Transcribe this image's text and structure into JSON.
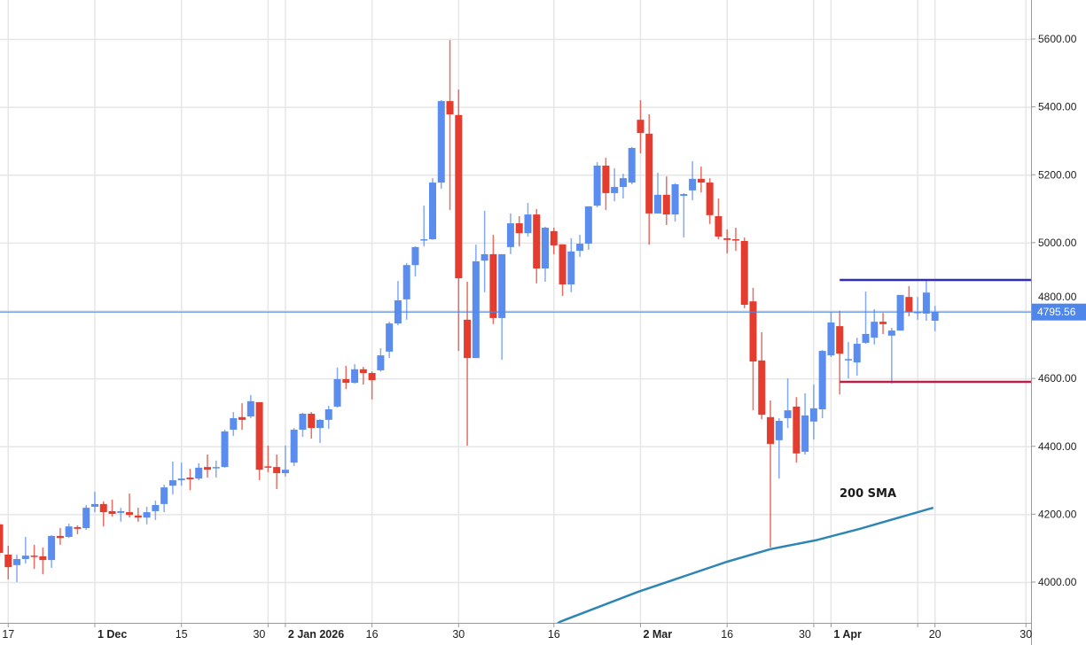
{
  "chart_data": {
    "type": "candlestick",
    "title": "",
    "colors": {
      "up": "#5b8def",
      "down": "#e53c30",
      "grid": "#e6e6e6",
      "price_line": "#4f86ea",
      "resistance": "#2f2cbf",
      "support": "#b5214b",
      "sma": "#2f86b5"
    },
    "ylim": [
      3880,
      5680
    ],
    "y_ticks": [
      "5600.00",
      "5400.00",
      "5200.00",
      "5000.00",
      "4800.00",
      "4600.00",
      "4400.00",
      "4200.00",
      "4000.00"
    ],
    "y_tick_values": [
      5600,
      5400,
      5200,
      5000,
      4800,
      4600,
      4400,
      4200,
      4000
    ],
    "x_ticks": [
      {
        "label": "17",
        "index": 1,
        "major": false
      },
      {
        "label": "1 Dec",
        "index": 11,
        "major": true
      },
      {
        "label": "15",
        "index": 21,
        "major": false
      },
      {
        "label": "30",
        "index": 31,
        "major": false
      },
      {
        "label": "2 Jan 2026",
        "index": 33,
        "major": true
      },
      {
        "label": "16",
        "index": 43,
        "major": false
      },
      {
        "label": "30",
        "index": 53,
        "major": false
      },
      {
        "label": "16",
        "index": 64,
        "major": false
      },
      {
        "label": "2 Mar",
        "index": 74,
        "major": true
      },
      {
        "label": "16",
        "index": 84,
        "major": false
      },
      {
        "label": "30",
        "index": 94,
        "major": false
      },
      {
        "label": "1 Apr",
        "index": 96,
        "major": true
      },
      {
        "label": "",
        "index": 106,
        "major": false
      },
      {
        "label": "20",
        "index": 108,
        "major": false
      },
      {
        "label": "30",
        "index": 118.5,
        "major": false
      }
    ],
    "candles_ohlc": [
      [
        4170,
        4175,
        4076,
        4086
      ],
      [
        4081,
        4107,
        4008,
        4044
      ],
      [
        4050,
        4081,
        4000,
        4068
      ],
      [
        4068,
        4133,
        4055,
        4078
      ],
      [
        4078,
        4110,
        4039,
        4076
      ],
      [
        4076,
        4102,
        4023,
        4065
      ],
      [
        4065,
        4138,
        4042,
        4136
      ],
      [
        4136,
        4159,
        4110,
        4130
      ],
      [
        4133,
        4172,
        4130,
        4164
      ],
      [
        4162,
        4167,
        4141,
        4157
      ],
      [
        4159,
        4227,
        4154,
        4219
      ],
      [
        4222,
        4266,
        4206,
        4230
      ],
      [
        4230,
        4238,
        4164,
        4206
      ],
      [
        4209,
        4243,
        4193,
        4201
      ],
      [
        4204,
        4219,
        4178,
        4209
      ],
      [
        4206,
        4261,
        4190,
        4198
      ],
      [
        4196,
        4219,
        4178,
        4190
      ],
      [
        4190,
        4222,
        4170,
        4206
      ],
      [
        4209,
        4240,
        4183,
        4227
      ],
      [
        4230,
        4287,
        4206,
        4279
      ],
      [
        4284,
        4355,
        4258,
        4300
      ],
      [
        4300,
        4352,
        4284,
        4305
      ],
      [
        4308,
        4334,
        4271,
        4303
      ],
      [
        4305,
        4350,
        4300,
        4337
      ],
      [
        4339,
        4376,
        4308,
        4331
      ],
      [
        4337,
        4358,
        4308,
        4339
      ],
      [
        4339,
        4449,
        4337,
        4444
      ],
      [
        4449,
        4501,
        4431,
        4483
      ],
      [
        4486,
        4527,
        4449,
        4478
      ],
      [
        4488,
        4551,
        4483,
        4533
      ],
      [
        4530,
        4530,
        4300,
        4331
      ],
      [
        4341,
        4402,
        4324,
        4339
      ],
      [
        4339,
        4376,
        4274,
        4321
      ],
      [
        4321,
        4402,
        4311,
        4331
      ],
      [
        4352,
        4454,
        4342,
        4449
      ],
      [
        4449,
        4499,
        4428,
        4496
      ],
      [
        4496,
        4501,
        4423,
        4454
      ],
      [
        4454,
        4480,
        4410,
        4478
      ],
      [
        4478,
        4519,
        4452,
        4509
      ],
      [
        4517,
        4632,
        4514,
        4598
      ],
      [
        4598,
        4637,
        4569,
        4587
      ],
      [
        4587,
        4642,
        4585,
        4627
      ],
      [
        4627,
        4634,
        4582,
        4616
      ],
      [
        4616,
        4621,
        4538,
        4595
      ],
      [
        4624,
        4689,
        4620,
        4668
      ],
      [
        4679,
        4767,
        4660,
        4762
      ],
      [
        4762,
        4887,
        4757,
        4830
      ],
      [
        4833,
        4940,
        4773,
        4934
      ],
      [
        4934,
        4989,
        4900,
        4987
      ],
      [
        5008,
        5109,
        4989,
        5010
      ],
      [
        5010,
        5190,
        5008,
        5177
      ],
      [
        5177,
        5420,
        5159,
        5417
      ],
      [
        5417,
        5597,
        5096,
        5378
      ],
      [
        5376,
        5451,
        4681,
        4895
      ],
      [
        4773,
        4885,
        4402,
        4660
      ],
      [
        4660,
        4994,
        4660,
        4945
      ],
      [
        4947,
        5094,
        4854,
        4966
      ],
      [
        4966,
        5023,
        4760,
        4778
      ],
      [
        4778,
        4966,
        4655,
        4966
      ],
      [
        4987,
        5086,
        4966,
        5057
      ],
      [
        5057,
        5078,
        4989,
        5028
      ],
      [
        5028,
        5117,
        5018,
        5083
      ],
      [
        5083,
        5099,
        4880,
        4924
      ],
      [
        4924,
        5047,
        4885,
        5044
      ],
      [
        5034,
        5044,
        4966,
        4992
      ],
      [
        4995,
        4995,
        4843,
        4877
      ],
      [
        4877,
        5013,
        4854,
        4974
      ],
      [
        4976,
        5023,
        4958,
        4997
      ],
      [
        4997,
        5107,
        4979,
        5107
      ],
      [
        5109,
        5237,
        5104,
        5227
      ],
      [
        5227,
        5250,
        5096,
        5146
      ],
      [
        5146,
        5219,
        5122,
        5164
      ],
      [
        5164,
        5203,
        5130,
        5190
      ],
      [
        5177,
        5282,
        5172,
        5279
      ],
      [
        5362,
        5420,
        5263,
        5323
      ],
      [
        5321,
        5378,
        4994,
        5086
      ],
      [
        5086,
        5206,
        5086,
        5141
      ],
      [
        5141,
        5195,
        5052,
        5083
      ],
      [
        5083,
        5175,
        5062,
        5172
      ],
      [
        5138,
        5146,
        5015,
        5143
      ],
      [
        5154,
        5240,
        5125,
        5188
      ],
      [
        5188,
        5224,
        5148,
        5177
      ],
      [
        5177,
        5190,
        5055,
        5081
      ],
      [
        5078,
        5130,
        5010,
        5018
      ],
      [
        5013,
        5039,
        4968,
        5008
      ],
      [
        5010,
        5044,
        4976,
        5008
      ],
      [
        5005,
        5015,
        4807,
        4817
      ],
      [
        4827,
        4867,
        4506,
        4650
      ],
      [
        4653,
        4736,
        4480,
        4493
      ],
      [
        4486,
        4535,
        4102,
        4407
      ],
      [
        4418,
        4483,
        4305,
        4475
      ],
      [
        4483,
        4600,
        4454,
        4506
      ],
      [
        4517,
        4545,
        4352,
        4379
      ],
      [
        4384,
        4556,
        4376,
        4491
      ],
      [
        4473,
        4582,
        4420,
        4512
      ],
      [
        4509,
        4684,
        4483,
        4681
      ],
      [
        4668,
        4796,
        4663,
        4765
      ],
      [
        4754,
        4799,
        4553,
        4673
      ],
      [
        4655,
        4707,
        4600,
        4657
      ],
      [
        4647,
        4720,
        4608,
        4702
      ],
      [
        4705,
        4856,
        4702,
        4731
      ],
      [
        4720,
        4804,
        4700,
        4767
      ],
      [
        4767,
        4793,
        4731,
        4760
      ],
      [
        4726,
        4749,
        4585,
        4741
      ],
      [
        4741,
        4846,
        4741,
        4846
      ],
      [
        4840,
        4872,
        4783,
        4796
      ],
      [
        4793,
        4840,
        4773,
        4796
      ],
      [
        4791,
        4887,
        4770,
        4853
      ],
      [
        4770,
        4814,
        4739,
        4795.56
      ]
    ],
    "sma_200": {
      "label": "200 SMA",
      "points": [
        [
          63.5,
          3860
        ],
        [
          64.7,
          3883
        ],
        [
          73.7,
          3971
        ],
        [
          84,
          4060
        ],
        [
          89,
          4097
        ],
        [
          94.2,
          4123
        ],
        [
          99.3,
          4157
        ],
        [
          107.8,
          4219
        ]
      ]
    },
    "last_price": {
      "value": 4795.56,
      "label": "4795.56"
    },
    "resistance": {
      "value": 4890,
      "from_index": 97
    },
    "support": {
      "value": 4590,
      "from_index": 97
    }
  }
}
